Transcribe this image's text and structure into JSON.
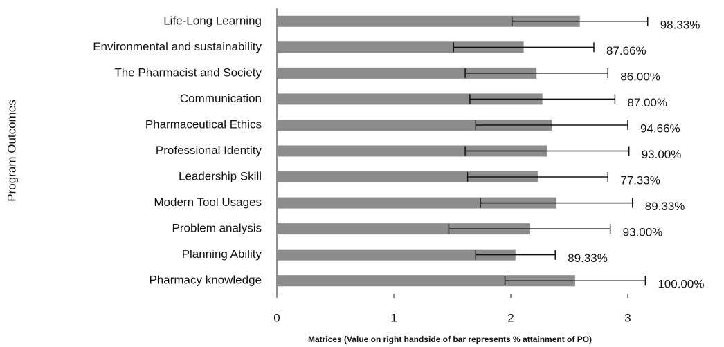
{
  "chart_data": {
    "type": "bar",
    "orientation": "horizontal",
    "y_axis_label": "Program Outcomes",
    "x_axis_label": "Matrices (Value on right handside of bar represents % attainment of PO)",
    "categories": [
      "Life-Long Learning",
      "Environmental and sustainability",
      "The Pharmacist and Society",
      "Communication",
      "Pharmaceutical Ethics",
      "Professional Identity",
      "Leadership Skill",
      "Modern Tool Usages",
      "Problem analysis",
      "Planning Ability",
      "Pharmacy knowledge"
    ],
    "values": [
      2.59,
      2.11,
      2.22,
      2.27,
      2.35,
      2.31,
      2.23,
      2.39,
      2.16,
      2.04,
      2.55
    ],
    "errors": [
      0.58,
      0.6,
      0.61,
      0.62,
      0.65,
      0.7,
      0.6,
      0.65,
      0.69,
      0.34,
      0.6
    ],
    "data_labels": [
      "98.33%",
      "87.66%",
      "86.00%",
      "87.00%",
      "94.66%",
      "93.00%",
      "77.33%",
      "89.33%",
      "93.00%",
      "89.33%",
      "100.00%"
    ],
    "color": "#8c8c8c",
    "xlim": [
      0,
      3.5
    ],
    "xticks": [
      0,
      1,
      2,
      3
    ],
    "grid": false
  }
}
